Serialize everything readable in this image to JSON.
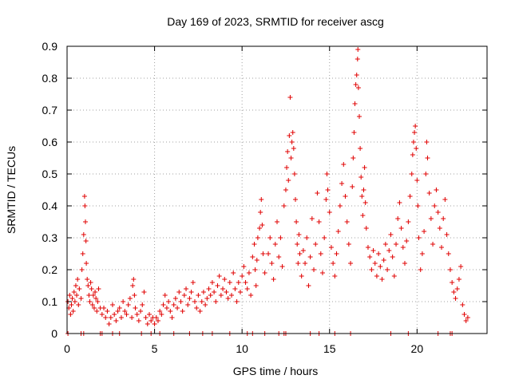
{
  "chart_data": {
    "type": "scatter",
    "title": "Day 169 of 2023, SRMTID for receiver ascg",
    "xlabel": "GPS time / hours",
    "ylabel": "SRMTID / TECUs",
    "xlim": [
      0,
      24
    ],
    "ylim": [
      0,
      0.9
    ],
    "x_ticks": [
      0,
      5,
      10,
      15,
      20
    ],
    "x_tick_labels": [
      "0",
      "5",
      "10",
      "15",
      "20"
    ],
    "y_ticks": [
      0,
      0.1,
      0.2,
      0.3,
      0.4,
      0.5,
      0.6,
      0.7,
      0.8,
      0.9
    ],
    "y_tick_labels": [
      "0",
      "0.1",
      "0.2",
      "0.3",
      "0.4",
      "0.5",
      "0.6",
      "0.7",
      "0.8",
      "0.9"
    ],
    "grid": true,
    "marker": "+",
    "color": "#e00000",
    "series": [
      {
        "name": "SRMTID",
        "points": [
          [
            0.05,
            0.1
          ],
          [
            0.1,
            0.08
          ],
          [
            0.15,
            0.12
          ],
          [
            0.2,
            0.06
          ],
          [
            0.25,
            0.09
          ],
          [
            0.3,
            0.11
          ],
          [
            0.35,
            0.07
          ],
          [
            0.4,
            0.13
          ],
          [
            0.45,
            0.1
          ],
          [
            0.5,
            0.15
          ],
          [
            0.55,
            0.12
          ],
          [
            0.6,
            0.17
          ],
          [
            0.65,
            0.09
          ],
          [
            0.7,
            0.14
          ],
          [
            0.8,
            0.11
          ],
          [
            0.85,
            0.2
          ],
          [
            0.9,
            0.25
          ],
          [
            0.95,
            0.31
          ],
          [
            1.0,
            0.43
          ],
          [
            1.02,
            0.4
          ],
          [
            1.05,
            0.35
          ],
          [
            1.08,
            0.29
          ],
          [
            1.1,
            0.22
          ],
          [
            1.15,
            0.17
          ],
          [
            1.2,
            0.15
          ],
          [
            1.25,
            0.12
          ],
          [
            1.3,
            0.1
          ],
          [
            1.35,
            0.16
          ],
          [
            1.4,
            0.14
          ],
          [
            1.45,
            0.09
          ],
          [
            1.5,
            0.12
          ],
          [
            1.55,
            0.08
          ],
          [
            1.6,
            0.13
          ],
          [
            1.65,
            0.11
          ],
          [
            1.7,
            0.07
          ],
          [
            1.75,
            0.1
          ],
          [
            1.8,
            0.14
          ],
          [
            1.9,
            0.08
          ],
          [
            2.0,
            0.06
          ],
          [
            2.1,
            0.08
          ],
          [
            2.2,
            0.05
          ],
          [
            2.3,
            0.07
          ],
          [
            2.4,
            0.03
          ],
          [
            2.5,
            0.05
          ],
          [
            2.6,
            0.09
          ],
          [
            2.7,
            0.06
          ],
          [
            2.8,
            0.04
          ],
          [
            2.9,
            0.07
          ],
          [
            3.0,
            0.08
          ],
          [
            3.1,
            0.05
          ],
          [
            3.2,
            0.1
          ],
          [
            3.3,
            0.07
          ],
          [
            3.4,
            0.06
          ],
          [
            3.5,
            0.09
          ],
          [
            3.6,
            0.11
          ],
          [
            3.7,
            0.05
          ],
          [
            3.75,
            0.15
          ],
          [
            3.8,
            0.17
          ],
          [
            3.85,
            0.12
          ],
          [
            3.9,
            0.08
          ],
          [
            4.0,
            0.06
          ],
          [
            4.1,
            0.04
          ],
          [
            4.2,
            0.07
          ],
          [
            4.3,
            0.09
          ],
          [
            4.4,
            0.13
          ],
          [
            4.5,
            0.05
          ],
          [
            4.6,
            0.03
          ],
          [
            4.7,
            0.06
          ],
          [
            4.8,
            0.04
          ],
          [
            4.9,
            0.05
          ],
          [
            5.0,
            0.03
          ],
          [
            5.1,
            0.05
          ],
          [
            5.2,
            0.04
          ],
          [
            5.3,
            0.07
          ],
          [
            5.4,
            0.06
          ],
          [
            5.5,
            0.09
          ],
          [
            5.6,
            0.12
          ],
          [
            5.7,
            0.08
          ],
          [
            5.8,
            0.1
          ],
          [
            5.9,
            0.07
          ],
          [
            6.0,
            0.05
          ],
          [
            6.1,
            0.09
          ],
          [
            6.2,
            0.11
          ],
          [
            6.3,
            0.08
          ],
          [
            6.4,
            0.13
          ],
          [
            6.5,
            0.1
          ],
          [
            6.6,
            0.07
          ],
          [
            6.7,
            0.12
          ],
          [
            6.8,
            0.14
          ],
          [
            6.9,
            0.09
          ],
          [
            7.0,
            0.11
          ],
          [
            7.1,
            0.13
          ],
          [
            7.2,
            0.16
          ],
          [
            7.3,
            0.1
          ],
          [
            7.4,
            0.08
          ],
          [
            7.5,
            0.12
          ],
          [
            7.6,
            0.07
          ],
          [
            7.7,
            0.1
          ],
          [
            7.8,
            0.13
          ],
          [
            7.9,
            0.09
          ],
          [
            8.0,
            0.11
          ],
          [
            8.1,
            0.14
          ],
          [
            8.2,
            0.12
          ],
          [
            8.3,
            0.16
          ],
          [
            8.4,
            0.13
          ],
          [
            8.5,
            0.1
          ],
          [
            8.6,
            0.15
          ],
          [
            8.7,
            0.18
          ],
          [
            8.8,
            0.12
          ],
          [
            8.9,
            0.14
          ],
          [
            9.0,
            0.17
          ],
          [
            9.1,
            0.13
          ],
          [
            9.2,
            0.11
          ],
          [
            9.3,
            0.16
          ],
          [
            9.4,
            0.12
          ],
          [
            9.5,
            0.19
          ],
          [
            9.6,
            0.14
          ],
          [
            9.7,
            0.1
          ],
          [
            9.8,
            0.16
          ],
          [
            9.9,
            0.13
          ],
          [
            10.0,
            0.18
          ],
          [
            10.1,
            0.21
          ],
          [
            10.2,
            0.16
          ],
          [
            10.3,
            0.14
          ],
          [
            10.4,
            0.19
          ],
          [
            10.5,
            0.12
          ],
          [
            10.6,
            0.24
          ],
          [
            10.7,
            0.28
          ],
          [
            10.75,
            0.2
          ],
          [
            10.8,
            0.15
          ],
          [
            10.85,
            0.23
          ],
          [
            10.9,
            0.3
          ],
          [
            11.0,
            0.33
          ],
          [
            11.05,
            0.38
          ],
          [
            11.1,
            0.42
          ],
          [
            11.15,
            0.34
          ],
          [
            11.2,
            0.25
          ],
          [
            11.3,
            0.19
          ],
          [
            11.5,
            0.25
          ],
          [
            11.6,
            0.3
          ],
          [
            11.7,
            0.22
          ],
          [
            11.8,
            0.17
          ],
          [
            11.9,
            0.28
          ],
          [
            12.0,
            0.35
          ],
          [
            12.1,
            0.24
          ],
          [
            12.2,
            0.3
          ],
          [
            12.3,
            0.21
          ],
          [
            12.4,
            0.4
          ],
          [
            12.5,
            0.45
          ],
          [
            12.55,
            0.52
          ],
          [
            12.6,
            0.57
          ],
          [
            12.65,
            0.48
          ],
          [
            12.7,
            0.62
          ],
          [
            12.75,
            0.74
          ],
          [
            12.8,
            0.55
          ],
          [
            12.85,
            0.6
          ],
          [
            12.9,
            0.63
          ],
          [
            12.95,
            0.58
          ],
          [
            13.0,
            0.5
          ],
          [
            13.05,
            0.42
          ],
          [
            13.1,
            0.35
          ],
          [
            13.15,
            0.28
          ],
          [
            13.2,
            0.22
          ],
          [
            13.25,
            0.31
          ],
          [
            13.3,
            0.25
          ],
          [
            13.4,
            0.18
          ],
          [
            13.5,
            0.26
          ],
          [
            13.6,
            0.22
          ],
          [
            13.7,
            0.3
          ],
          [
            13.8,
            0.15
          ],
          [
            13.9,
            0.24
          ],
          [
            14.0,
            0.36
          ],
          [
            14.1,
            0.2
          ],
          [
            14.2,
            0.28
          ],
          [
            14.3,
            0.44
          ],
          [
            14.4,
            0.35
          ],
          [
            14.5,
            0.25
          ],
          [
            14.6,
            0.19
          ],
          [
            14.7,
            0.3
          ],
          [
            14.8,
            0.42
          ],
          [
            14.85,
            0.5
          ],
          [
            14.9,
            0.45
          ],
          [
            15.0,
            0.38
          ],
          [
            15.1,
            0.27
          ],
          [
            15.2,
            0.22
          ],
          [
            15.3,
            0.18
          ],
          [
            15.4,
            0.25
          ],
          [
            15.5,
            0.32
          ],
          [
            15.6,
            0.4
          ],
          [
            15.7,
            0.47
          ],
          [
            15.8,
            0.53
          ],
          [
            15.9,
            0.43
          ],
          [
            16.0,
            0.35
          ],
          [
            16.1,
            0.28
          ],
          [
            16.2,
            0.22
          ],
          [
            16.3,
            0.46
          ],
          [
            16.35,
            0.55
          ],
          [
            16.4,
            0.63
          ],
          [
            16.45,
            0.72
          ],
          [
            16.5,
            0.78
          ],
          [
            16.55,
            0.81
          ],
          [
            16.6,
            0.86
          ],
          [
            16.62,
            0.89
          ],
          [
            16.65,
            0.77
          ],
          [
            16.7,
            0.68
          ],
          [
            16.75,
            0.58
          ],
          [
            16.8,
            0.49
          ],
          [
            16.85,
            0.43
          ],
          [
            16.9,
            0.37
          ],
          [
            16.95,
            0.45
          ],
          [
            17.0,
            0.52
          ],
          [
            17.05,
            0.41
          ],
          [
            17.1,
            0.33
          ],
          [
            17.2,
            0.27
          ],
          [
            17.3,
            0.24
          ],
          [
            17.4,
            0.2
          ],
          [
            17.5,
            0.26
          ],
          [
            17.6,
            0.22
          ],
          [
            17.7,
            0.18
          ],
          [
            17.8,
            0.25
          ],
          [
            17.9,
            0.21
          ],
          [
            18.0,
            0.17
          ],
          [
            18.1,
            0.23
          ],
          [
            18.2,
            0.28
          ],
          [
            18.3,
            0.2
          ],
          [
            18.4,
            0.26
          ],
          [
            18.5,
            0.31
          ],
          [
            18.6,
            0.24
          ],
          [
            18.7,
            0.18
          ],
          [
            18.8,
            0.28
          ],
          [
            18.9,
            0.36
          ],
          [
            19.0,
            0.41
          ],
          [
            19.1,
            0.33
          ],
          [
            19.2,
            0.27
          ],
          [
            19.3,
            0.22
          ],
          [
            19.4,
            0.29
          ],
          [
            19.5,
            0.35
          ],
          [
            19.6,
            0.43
          ],
          [
            19.7,
            0.5
          ],
          [
            19.75,
            0.56
          ],
          [
            19.8,
            0.6
          ],
          [
            19.85,
            0.63
          ],
          [
            19.9,
            0.65
          ],
          [
            19.95,
            0.58
          ],
          [
            20.0,
            0.48
          ],
          [
            20.05,
            0.4
          ],
          [
            20.1,
            0.3
          ],
          [
            20.2,
            0.2
          ],
          [
            20.3,
            0.25
          ],
          [
            20.4,
            0.32
          ],
          [
            20.5,
            0.5
          ],
          [
            20.55,
            0.6
          ],
          [
            20.6,
            0.55
          ],
          [
            20.7,
            0.44
          ],
          [
            20.8,
            0.36
          ],
          [
            20.9,
            0.28
          ],
          [
            21.0,
            0.4
          ],
          [
            21.1,
            0.45
          ],
          [
            21.2,
            0.38
          ],
          [
            21.3,
            0.33
          ],
          [
            21.4,
            0.27
          ],
          [
            21.5,
            0.36
          ],
          [
            21.6,
            0.42
          ],
          [
            21.7,
            0.31
          ],
          [
            21.8,
            0.25
          ],
          [
            21.9,
            0.2
          ],
          [
            22.0,
            0.16
          ],
          [
            22.1,
            0.13
          ],
          [
            22.2,
            0.11
          ],
          [
            22.3,
            0.14
          ],
          [
            22.4,
            0.17
          ],
          [
            22.5,
            0.21
          ],
          [
            22.6,
            0.09
          ],
          [
            22.7,
            0.06
          ],
          [
            22.8,
            0.04
          ],
          [
            22.9,
            0.05
          ]
        ]
      }
    ],
    "zero_markers_x": [
      0.05,
      0.8,
      0.95,
      1.9,
      2.0,
      2.6,
      3.0,
      4.25,
      4.8,
      5.3,
      6.1,
      7.0,
      7.75,
      8.3,
      9.3,
      10.3,
      10.6,
      11.3,
      12.1,
      12.4,
      12.5,
      13.9,
      14.4,
      15.3,
      16.2,
      18.5,
      19.5,
      21.2,
      21.9,
      22.0
    ]
  }
}
